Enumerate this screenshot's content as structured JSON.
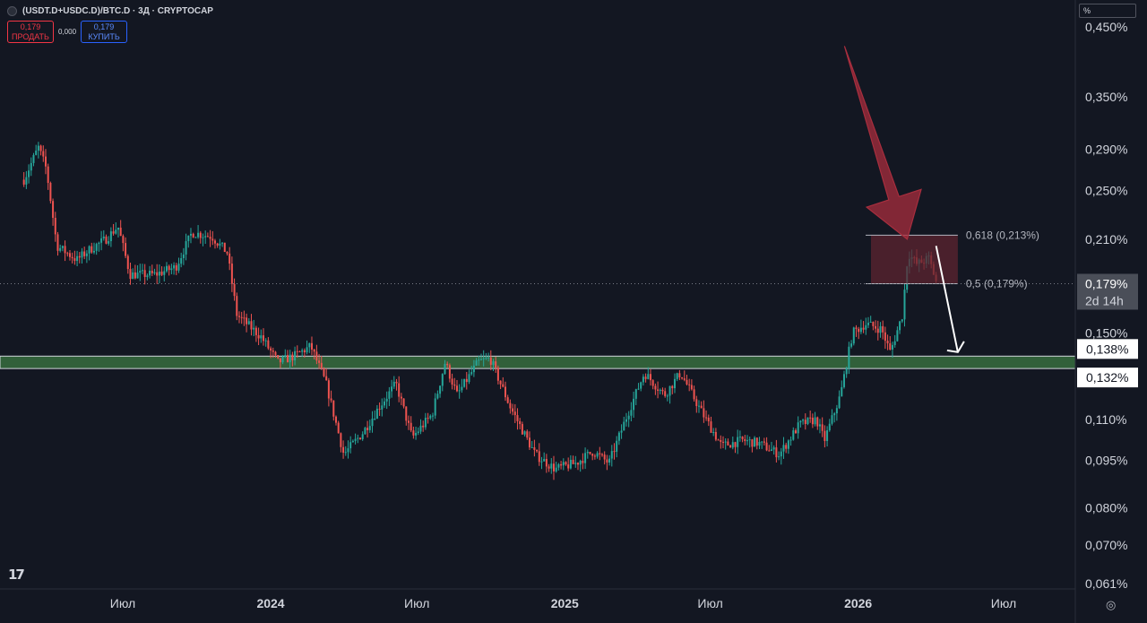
{
  "header": {
    "title": "(USDT.D+USDC.D)/BTC.D · 3Д · CRYPTOCAP",
    "sell_price": "0,179",
    "sell_label": "ПРОДАТЬ",
    "spread": "0,000",
    "buy_price": "0,179",
    "buy_label": "КУПИТЬ"
  },
  "scale_unit": "%",
  "chart_data": {
    "type": "candlestick",
    "y_scale": "log",
    "ylim": [
      0.0605,
      0.47
    ],
    "y_ticks": [
      {
        "value": 0.45,
        "label": "0,450%"
      },
      {
        "value": 0.35,
        "label": "0,350%"
      },
      {
        "value": 0.29,
        "label": "0,290%"
      },
      {
        "value": 0.25,
        "label": "0,250%"
      },
      {
        "value": 0.21,
        "label": "0,210%"
      },
      {
        "value": 0.15,
        "label": "0,150%"
      },
      {
        "value": 0.11,
        "label": "0,110%"
      },
      {
        "value": 0.095,
        "label": "0,095%"
      },
      {
        "value": 0.08,
        "label": "0,080%"
      },
      {
        "value": 0.07,
        "label": "0,070%"
      },
      {
        "value": 0.061,
        "label": "0,061%"
      }
    ],
    "x_ticks": [
      {
        "date": "2023-07-01",
        "label": "Июл",
        "bold": false
      },
      {
        "date": "2024-01-01",
        "label": "2024",
        "bold": true
      },
      {
        "date": "2024-07-01",
        "label": "Июл",
        "bold": false
      },
      {
        "date": "2025-01-01",
        "label": "2025",
        "bold": true
      },
      {
        "date": "2025-07-01",
        "label": "Июл",
        "bold": false
      },
      {
        "date": "2026-01-01",
        "label": "2026",
        "bold": true
      },
      {
        "date": "2026-07-01",
        "label": "Июл",
        "bold": false
      }
    ],
    "price_path": [
      [
        "2023-02-28",
        0.26
      ],
      [
        "2023-03-18",
        0.292
      ],
      [
        "2023-03-28",
        0.27
      ],
      [
        "2023-04-10",
        0.205
      ],
      [
        "2023-05-05",
        0.195
      ],
      [
        "2023-05-20",
        0.202
      ],
      [
        "2023-06-10",
        0.21
      ],
      [
        "2023-06-25",
        0.22
      ],
      [
        "2023-07-10",
        0.185
      ],
      [
        "2023-08-10",
        0.185
      ],
      [
        "2023-09-05",
        0.19
      ],
      [
        "2023-09-25",
        0.215
      ],
      [
        "2023-10-20",
        0.212
      ],
      [
        "2023-11-08",
        0.2
      ],
      [
        "2023-11-20",
        0.16
      ],
      [
        "2023-12-20",
        0.148
      ],
      [
        "2024-01-10",
        0.135
      ],
      [
        "2024-01-30",
        0.138
      ],
      [
        "2024-02-20",
        0.143
      ],
      [
        "2024-03-10",
        0.125
      ],
      [
        "2024-04-01",
        0.097
      ],
      [
        "2024-04-25",
        0.105
      ],
      [
        "2024-05-15",
        0.115
      ],
      [
        "2024-06-05",
        0.125
      ],
      [
        "2024-06-25",
        0.103
      ],
      [
        "2024-07-20",
        0.112
      ],
      [
        "2024-08-05",
        0.135
      ],
      [
        "2024-08-20",
        0.12
      ],
      [
        "2024-09-15",
        0.135
      ],
      [
        "2024-09-30",
        0.137
      ],
      [
        "2024-10-25",
        0.115
      ],
      [
        "2024-11-25",
        0.097
      ],
      [
        "2024-12-20",
        0.092
      ],
      [
        "2025-01-15",
        0.094
      ],
      [
        "2025-02-05",
        0.098
      ],
      [
        "2025-02-25",
        0.094
      ],
      [
        "2025-03-20",
        0.112
      ],
      [
        "2025-04-10",
        0.13
      ],
      [
        "2025-05-05",
        0.12
      ],
      [
        "2025-05-25",
        0.13
      ],
      [
        "2025-06-20",
        0.113
      ],
      [
        "2025-07-15",
        0.1
      ],
      [
        "2025-08-10",
        0.102
      ],
      [
        "2025-08-30",
        0.101
      ],
      [
        "2025-09-25",
        0.097
      ],
      [
        "2025-10-20",
        0.108
      ],
      [
        "2025-11-10",
        0.11
      ],
      [
        "2025-11-20",
        0.102
      ],
      [
        "2025-12-10",
        0.12
      ],
      [
        "2025-12-25",
        0.15
      ],
      [
        "2026-01-10",
        0.155
      ],
      [
        "2026-01-30",
        0.152
      ],
      [
        "2026-02-10",
        0.14
      ],
      [
        "2026-02-25",
        0.16
      ],
      [
        "2026-03-04",
        0.2
      ],
      [
        "2026-03-15",
        0.192
      ],
      [
        "2026-03-30",
        0.196
      ],
      [
        "2026-04-09",
        0.179
      ]
    ],
    "fib_levels": [
      {
        "ratio": "0,618",
        "value": 0.213,
        "label": "0,618 (0,213%)"
      },
      {
        "ratio": "0,5",
        "value": 0.179,
        "label": "0,5 (0,179%)"
      }
    ],
    "fib_zone": {
      "start": "2026-01-17",
      "end": "2026-05-05"
    },
    "support_zone": {
      "low": 0.132,
      "high": 0.138,
      "low_label": "0,132%",
      "high_label": "0,138%"
    },
    "current_price": {
      "value": 0.179,
      "label": "0,179%",
      "countdown": "2d 14h"
    },
    "projection_arrow": {
      "from": [
        "2026-04-08",
        0.205
      ],
      "to": [
        "2026-05-05",
        0.14
      ]
    },
    "callout_arrow": {
      "from": [
        "2025-12-15",
        0.42
      ],
      "to": [
        "2026-03-03",
        0.21
      ]
    },
    "colors": {
      "background": "#131722",
      "up": "#26a69a",
      "down": "#ef5350",
      "support": "#376d3e",
      "fib_zone": "#5d2430",
      "callout": "#a82e3e",
      "projection": "#ffffff"
    }
  }
}
